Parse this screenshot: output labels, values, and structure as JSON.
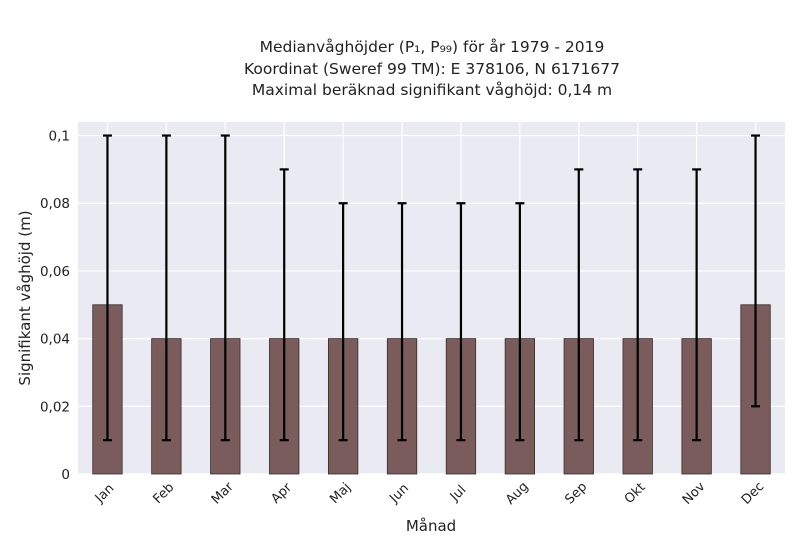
{
  "chart_data": {
    "type": "bar",
    "title_lines": [
      "Medianvåghöjder (P₁, P₉₉) för år 1979 - 2019",
      "Koordinat (Sweref 99 TM): E 378106, N 6171677",
      "Maximal beräknad signifikant våghöjd: 0,14 m"
    ],
    "xlabel": "Månad",
    "ylabel": "Signifikant våghöjd (m)",
    "categories": [
      "Jan",
      "Feb",
      "Mar",
      "Apr",
      "Maj",
      "Jun",
      "Jul",
      "Aug",
      "Sep",
      "Okt",
      "Nov",
      "Dec"
    ],
    "series": [
      {
        "values": [
          0.05,
          0.04,
          0.04,
          0.04,
          0.04,
          0.04,
          0.04,
          0.04,
          0.04,
          0.04,
          0.04,
          0.05
        ],
        "p1": [
          0.01,
          0.01,
          0.01,
          0.01,
          0.01,
          0.01,
          0.01,
          0.01,
          0.01,
          0.01,
          0.01,
          0.02
        ],
        "p99": [
          0.1,
          0.1,
          0.1,
          0.09,
          0.08,
          0.08,
          0.08,
          0.08,
          0.09,
          0.09,
          0.09,
          0.1
        ]
      }
    ],
    "ylim": [
      0,
      0.104
    ],
    "yticks": [
      0,
      0.02,
      0.04,
      0.06,
      0.08,
      0.1
    ],
    "ytick_labels": [
      "0",
      "0,02",
      "0,04",
      "0,06",
      "0,08",
      "0,1"
    ],
    "grid": true,
    "colors": {
      "bar": "#7b5c5c",
      "bar_edge": "#3a2a2a",
      "errorbar": "#000000",
      "plot_background": "#eaeaf2",
      "grid": "#ffffff"
    }
  }
}
